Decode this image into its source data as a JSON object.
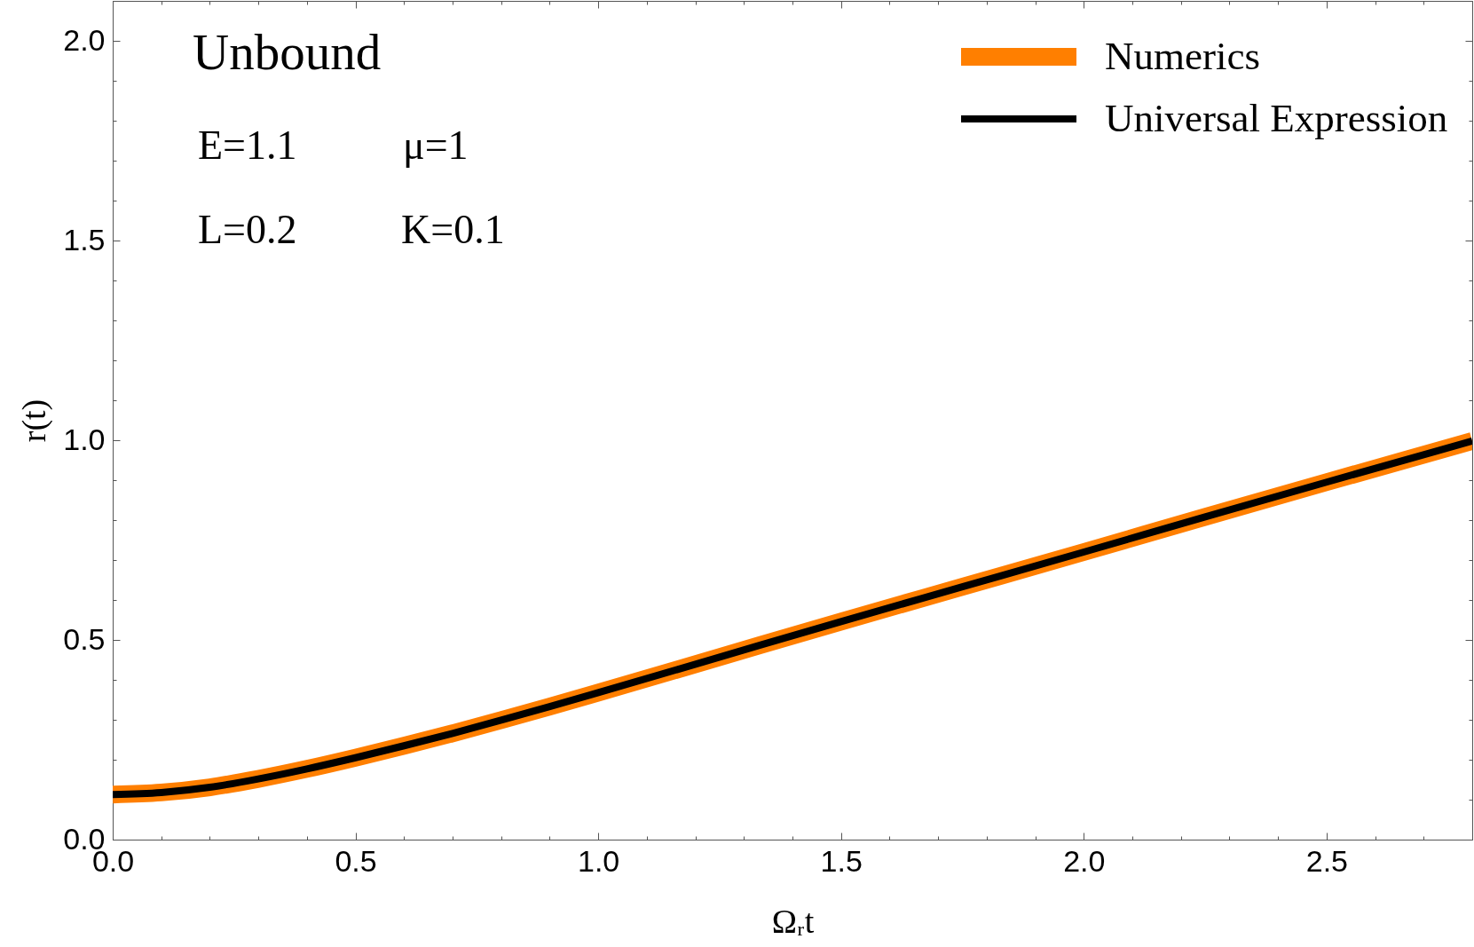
{
  "chart_data": {
    "type": "line",
    "annotations": [
      "Unbound",
      "E=1.1",
      "μ=1",
      "L=0.2",
      "K=0.1"
    ],
    "xlabel": "Ωᵣt",
    "ylabel": "r(t)",
    "x": [
      0,
      0.1,
      0.2,
      0.3,
      0.4,
      0.5,
      0.6,
      0.7,
      0.8,
      0.9,
      1,
      1.25,
      1.5,
      1.75,
      2,
      2.25,
      2.5,
      2.8
    ],
    "series": [
      {
        "name": "Numerics",
        "color": "#ff7f00",
        "values": [
          0.113,
          0.118,
          0.131,
          0.152,
          0.177,
          0.205,
          0.235,
          0.266,
          0.299,
          0.333,
          0.368,
          0.457,
          0.546,
          0.633,
          0.72,
          0.808,
          0.895,
          0.998
        ]
      },
      {
        "name": "Universal Expression",
        "color": "#000000",
        "values": [
          0.113,
          0.118,
          0.131,
          0.152,
          0.177,
          0.205,
          0.235,
          0.266,
          0.299,
          0.333,
          0.368,
          0.457,
          0.546,
          0.633,
          0.72,
          0.808,
          0.895,
          0.998
        ]
      }
    ],
    "xlim": [
      0,
      2.8
    ],
    "ylim": [
      0,
      2.1
    ],
    "xticks": [
      {
        "value": 0,
        "label": "0.0"
      },
      {
        "value": 0.1,
        "label": null
      },
      {
        "value": 0.2,
        "label": null
      },
      {
        "value": 0.3,
        "label": null
      },
      {
        "value": 0.4,
        "label": null
      },
      0.5,
      {
        "value": 0.6,
        "label": null
      },
      {
        "value": 0.7,
        "label": null
      },
      {
        "value": 0.8,
        "label": null
      },
      {
        "value": 0.9,
        "label": null
      },
      {
        "value": 1,
        "label": "1.0"
      },
      {
        "value": 1.1,
        "label": null
      },
      {
        "value": 1.2,
        "label": null
      },
      {
        "value": 1.3,
        "label": null
      },
      {
        "value": 1.4,
        "label": null
      },
      1.5,
      {
        "value": 1.6,
        "label": null
      },
      {
        "value": 1.7,
        "label": null
      },
      {
        "value": 1.8,
        "label": null
      },
      {
        "value": 1.9,
        "label": null
      },
      {
        "value": 2,
        "label": "2.0"
      },
      {
        "value": 2.1,
        "label": null
      },
      {
        "value": 2.2,
        "label": null
      },
      {
        "value": 2.3,
        "label": null
      },
      {
        "value": 2.4,
        "label": null
      },
      2.5,
      {
        "value": 2.6,
        "label": null
      },
      {
        "value": 2.7,
        "label": null
      }
    ],
    "yticks": [
      {
        "value": 0,
        "label": "0.0"
      },
      {
        "value": 0.1,
        "label": null
      },
      {
        "value": 0.2,
        "label": null
      },
      {
        "value": 0.3,
        "label": null
      },
      {
        "value": 0.4,
        "label": null
      },
      0.5,
      {
        "value": 0.6,
        "label": null
      },
      {
        "value": 0.7,
        "label": null
      },
      {
        "value": 0.8,
        "label": null
      },
      {
        "value": 0.9,
        "label": null
      },
      {
        "value": 1,
        "label": "1.0"
      },
      {
        "value": 1.1,
        "label": null
      },
      {
        "value": 1.2,
        "label": null
      },
      {
        "value": 1.3,
        "label": null
      },
      {
        "value": 1.4,
        "label": null
      },
      1.5,
      {
        "value": 1.6,
        "label": null
      },
      {
        "value": 1.7,
        "label": null
      },
      {
        "value": 1.8,
        "label": null
      },
      {
        "value": 1.9,
        "label": null
      },
      {
        "value": 2,
        "label": "2.0"
      }
    ],
    "grid": false,
    "legend": "top right"
  }
}
